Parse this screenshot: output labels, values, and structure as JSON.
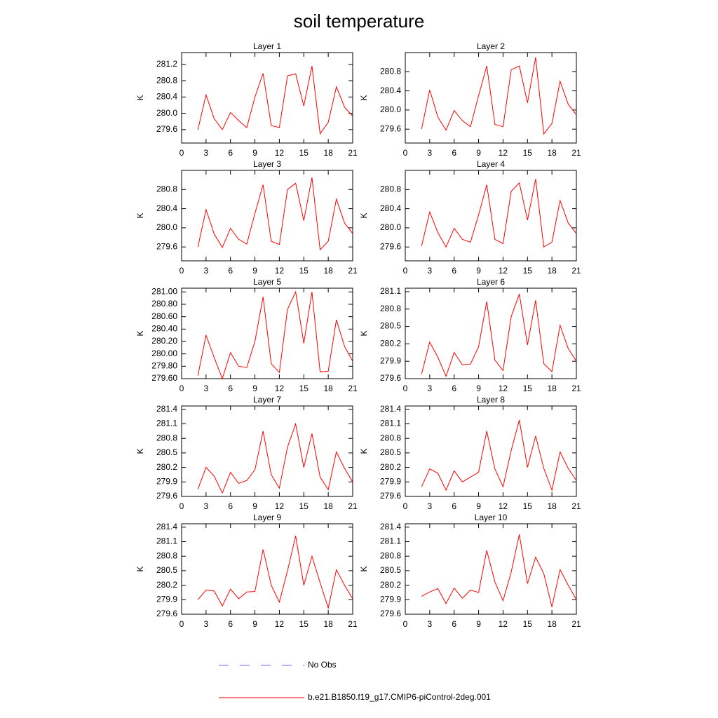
{
  "title": "soil temperature",
  "legend": [
    {
      "name": "No Obs",
      "color": "#6a6aff",
      "dash": true
    },
    {
      "name": "b.e21.B1850.f19_g17.CMIP6-piControl-2deg.001",
      "color": "#ff0000",
      "dash": false
    }
  ],
  "chart_data": [
    {
      "type": "line",
      "title": "Layer 1",
      "ylabel": "K",
      "x": [
        2,
        3,
        4,
        5,
        6,
        7,
        8,
        9,
        10,
        11,
        12,
        13,
        14,
        15,
        16,
        17,
        18,
        19,
        20,
        21
      ],
      "series": [
        {
          "color": "#ff0000",
          "values": [
            279.6,
            280.45,
            279.87,
            279.6,
            280.02,
            279.82,
            279.65,
            280.4,
            280.98,
            279.7,
            279.65,
            280.92,
            280.97,
            280.18,
            281.16,
            279.5,
            279.78,
            280.65,
            280.15,
            279.93
          ]
        }
      ],
      "xlim": [
        0,
        21
      ],
      "xticks": [
        0,
        3,
        6,
        9,
        12,
        15,
        18,
        21
      ],
      "ylim": [
        279.27,
        281.49
      ],
      "yticks": [
        279.6,
        {
          "value": 280,
          "label": "280.0"
        },
        280.4,
        280.8,
        281.2
      ]
    },
    {
      "type": "line",
      "title": "Layer 2",
      "ylabel": "K",
      "x": [
        2,
        3,
        4,
        5,
        6,
        7,
        8,
        9,
        10,
        11,
        12,
        13,
        14,
        15,
        16,
        17,
        18,
        19,
        20,
        21
      ],
      "series": [
        {
          "color": "#ff0000",
          "values": [
            279.6,
            280.42,
            279.85,
            279.58,
            279.99,
            279.78,
            279.65,
            280.3,
            280.92,
            279.7,
            279.65,
            280.84,
            280.92,
            280.15,
            281.1,
            279.5,
            279.72,
            280.6,
            280.12,
            279.9
          ]
        }
      ],
      "xlim": [
        0,
        21
      ],
      "xticks": [
        0,
        3,
        6,
        9,
        12,
        15,
        18,
        21
      ],
      "ylim": [
        279.31,
        281.2
      ],
      "yticks": [
        279.6,
        {
          "value": 280,
          "label": "280.0"
        },
        280.4,
        280.8
      ]
    },
    {
      "type": "line",
      "title": "Layer 3",
      "ylabel": "K",
      "x": [
        2,
        3,
        4,
        5,
        6,
        7,
        8,
        9,
        10,
        11,
        12,
        13,
        14,
        15,
        16,
        17,
        18,
        19,
        20,
        21
      ],
      "series": [
        {
          "color": "#ff0000",
          "values": [
            279.6,
            280.38,
            279.87,
            279.59,
            279.99,
            279.76,
            279.66,
            280.3,
            280.9,
            279.72,
            279.65,
            280.8,
            280.93,
            280.15,
            281.05,
            279.54,
            279.72,
            280.6,
            280.1,
            279.88
          ]
        }
      ],
      "xlim": [
        0,
        21
      ],
      "xticks": [
        0,
        3,
        6,
        9,
        12,
        15,
        18,
        21
      ],
      "ylim": [
        279.31,
        281.2
      ],
      "yticks": [
        279.6,
        {
          "value": 280,
          "label": "280.0"
        },
        280.4,
        280.8
      ]
    },
    {
      "type": "line",
      "title": "Layer 4",
      "ylabel": "K",
      "x": [
        2,
        3,
        4,
        5,
        6,
        7,
        8,
        9,
        10,
        11,
        12,
        13,
        14,
        15,
        16,
        17,
        18,
        19,
        20,
        21
      ],
      "series": [
        {
          "color": "#ff0000",
          "values": [
            279.62,
            280.33,
            279.9,
            279.6,
            279.99,
            279.76,
            279.7,
            280.27,
            280.9,
            279.76,
            279.67,
            280.76,
            280.94,
            280.16,
            281.02,
            279.6,
            279.7,
            280.57,
            280.1,
            279.88
          ]
        }
      ],
      "xlim": [
        0,
        21
      ],
      "xticks": [
        0,
        3,
        6,
        9,
        12,
        15,
        18,
        21
      ],
      "ylim": [
        279.31,
        281.2
      ],
      "yticks": [
        279.6,
        {
          "value": 280,
          "label": "280.0"
        },
        280.4,
        280.8
      ]
    },
    {
      "type": "line",
      "title": "Layer 5",
      "ylabel": "K",
      "x": [
        2,
        3,
        4,
        5,
        6,
        7,
        8,
        9,
        10,
        11,
        12,
        13,
        14,
        15,
        16,
        17,
        18,
        19,
        20,
        21
      ],
      "series": [
        {
          "color": "#ff0000",
          "values": [
            279.65,
            280.3,
            279.94,
            279.6,
            280.02,
            279.8,
            279.78,
            280.2,
            280.92,
            279.84,
            279.7,
            280.72,
            281.0,
            280.17,
            281.0,
            279.71,
            279.72,
            280.55,
            280.12,
            279.88
          ]
        }
      ],
      "xlim": [
        0,
        21
      ],
      "xticks": [
        0,
        3,
        6,
        9,
        12,
        15,
        18,
        21
      ],
      "ylim": [
        279.6,
        281.06
      ],
      "yticks": [
        {
          "value": 279.6,
          "label": "279.60"
        },
        {
          "value": 279.8,
          "label": "279.80"
        },
        {
          "value": 280,
          "label": "280.00"
        },
        {
          "value": 280.2,
          "label": "280.20"
        },
        {
          "value": 280.4,
          "label": "280.40"
        },
        {
          "value": 280.6,
          "label": "280.60"
        },
        {
          "value": 280.8,
          "label": "280.80"
        },
        {
          "value": 281,
          "label": "281.00"
        }
      ]
    },
    {
      "type": "line",
      "title": "Layer 6",
      "ylabel": "K",
      "x": [
        2,
        3,
        4,
        5,
        6,
        7,
        8,
        9,
        10,
        11,
        12,
        13,
        14,
        15,
        16,
        17,
        18,
        19,
        20,
        21
      ],
      "series": [
        {
          "color": "#ff0000",
          "values": [
            279.68,
            280.23,
            279.97,
            279.64,
            280.05,
            279.84,
            279.85,
            280.15,
            280.93,
            279.92,
            279.74,
            280.67,
            281.06,
            280.18,
            280.95,
            279.86,
            279.72,
            280.52,
            280.12,
            279.9
          ]
        }
      ],
      "xlim": [
        0,
        21
      ],
      "xticks": [
        0,
        3,
        6,
        9,
        12,
        15,
        18,
        21
      ],
      "ylim": [
        279.6,
        281.16
      ],
      "yticks": [
        279.6,
        279.9,
        280.2,
        280.5,
        280.8,
        281.1
      ]
    },
    {
      "type": "line",
      "title": "Layer 7",
      "ylabel": "K",
      "x": [
        2,
        3,
        4,
        5,
        6,
        7,
        8,
        9,
        10,
        11,
        12,
        13,
        14,
        15,
        16,
        17,
        18,
        19,
        20,
        21
      ],
      "series": [
        {
          "color": "#ff0000",
          "values": [
            279.75,
            280.2,
            280.02,
            279.67,
            280.1,
            279.87,
            279.93,
            280.15,
            280.95,
            280.05,
            279.77,
            280.62,
            281.1,
            280.2,
            280.9,
            280.0,
            279.74,
            280.52,
            280.18,
            279.9
          ]
        }
      ],
      "xlim": [
        0,
        21
      ],
      "xticks": [
        0,
        3,
        6,
        9,
        12,
        15,
        18,
        21
      ],
      "ylim": [
        279.6,
        281.47
      ],
      "yticks": [
        279.6,
        279.9,
        280.2,
        280.5,
        280.8,
        281.1,
        281.4
      ]
    },
    {
      "type": "line",
      "title": "Layer 8",
      "ylabel": "K",
      "x": [
        2,
        3,
        4,
        5,
        6,
        7,
        8,
        9,
        10,
        11,
        12,
        13,
        14,
        15,
        16,
        17,
        18,
        19,
        20,
        21
      ],
      "series": [
        {
          "color": "#ff0000",
          "values": [
            279.8,
            280.17,
            280.08,
            279.73,
            280.13,
            279.9,
            280.0,
            280.1,
            280.95,
            280.17,
            279.8,
            280.55,
            281.18,
            280.2,
            280.85,
            280.18,
            279.73,
            280.52,
            280.18,
            279.93
          ]
        }
      ],
      "xlim": [
        0,
        21
      ],
      "xticks": [
        0,
        3,
        6,
        9,
        12,
        15,
        18,
        21
      ],
      "ylim": [
        279.6,
        281.47
      ],
      "yticks": [
        279.6,
        279.9,
        280.2,
        280.5,
        280.8,
        281.1,
        281.4
      ]
    },
    {
      "type": "line",
      "title": "Layer 9",
      "ylabel": "K",
      "x": [
        2,
        3,
        4,
        5,
        6,
        7,
        8,
        9,
        10,
        11,
        12,
        13,
        14,
        15,
        16,
        17,
        18,
        19,
        20,
        21
      ],
      "series": [
        {
          "color": "#ff0000",
          "values": [
            279.9,
            280.1,
            280.08,
            279.77,
            280.12,
            279.92,
            280.06,
            280.07,
            280.94,
            280.2,
            279.85,
            280.5,
            281.22,
            280.2,
            280.8,
            280.25,
            279.73,
            280.52,
            280.2,
            279.92
          ]
        }
      ],
      "xlim": [
        0,
        21
      ],
      "xticks": [
        0,
        3,
        6,
        9,
        12,
        15,
        18,
        21
      ],
      "ylim": [
        279.6,
        281.47
      ],
      "yticks": [
        279.6,
        279.9,
        280.2,
        280.5,
        280.8,
        281.1,
        281.4
      ]
    },
    {
      "type": "line",
      "title": "Layer 10",
      "ylabel": "K",
      "x": [
        2,
        3,
        4,
        5,
        6,
        7,
        8,
        9,
        10,
        11,
        12,
        13,
        14,
        15,
        16,
        17,
        18,
        19,
        20,
        21
      ],
      "series": [
        {
          "color": "#ff0000",
          "values": [
            279.97,
            280.06,
            280.13,
            279.82,
            280.14,
            279.93,
            280.1,
            280.05,
            280.92,
            280.27,
            279.88,
            280.47,
            281.25,
            280.23,
            280.78,
            280.44,
            279.75,
            280.52,
            280.2,
            279.9
          ]
        }
      ],
      "xlim": [
        0,
        21
      ],
      "xticks": [
        0,
        3,
        6,
        9,
        12,
        15,
        18,
        21
      ],
      "ylim": [
        279.6,
        281.47
      ],
      "yticks": [
        279.6,
        279.9,
        280.2,
        280.5,
        280.8,
        281.1,
        281.4
      ]
    }
  ]
}
